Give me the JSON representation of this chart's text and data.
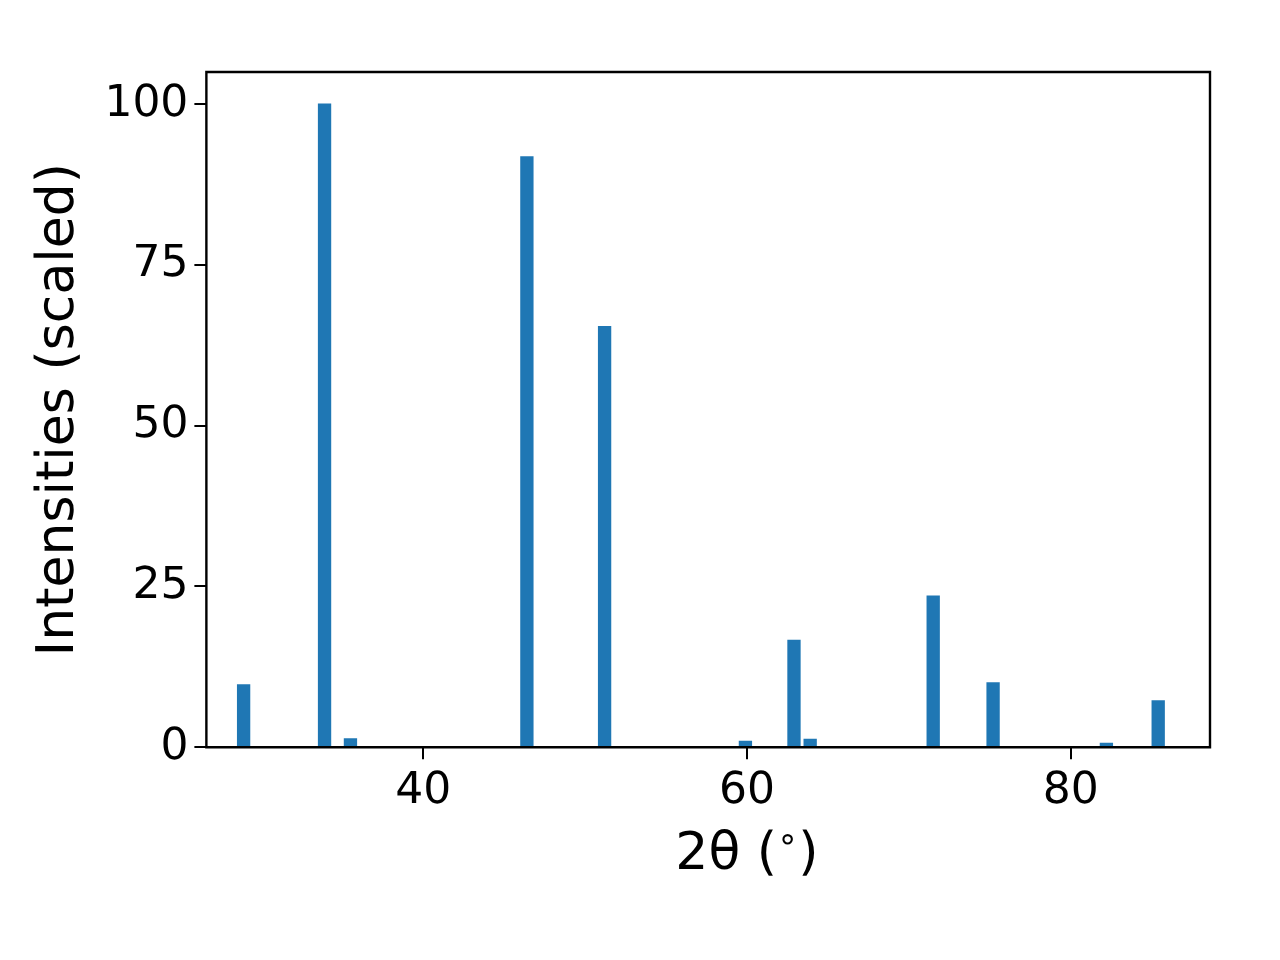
{
  "chart_data": {
    "type": "bar",
    "xlabel": "2θ ($^{∘}$)",
    "ylabel": "Intensities (scaled)",
    "x": [
      28.9,
      33.9,
      35.5,
      46.4,
      51.2,
      59.9,
      62.9,
      63.9,
      71.5,
      75.2,
      82.2,
      85.4
    ],
    "values": [
      9.7,
      100,
      1.3,
      91.8,
      65.4,
      0.9,
      16.6,
      1.2,
      23.5,
      10,
      0.6,
      7.2
    ],
    "color": "#1f77b4",
    "xlim": [
      26.6,
      88.6
    ],
    "xticks": [
      40,
      60,
      80
    ],
    "ylim": [
      0,
      105
    ],
    "yticks": [
      0,
      25,
      50,
      75,
      100
    ],
    "grid": false,
    "legend": false
  }
}
